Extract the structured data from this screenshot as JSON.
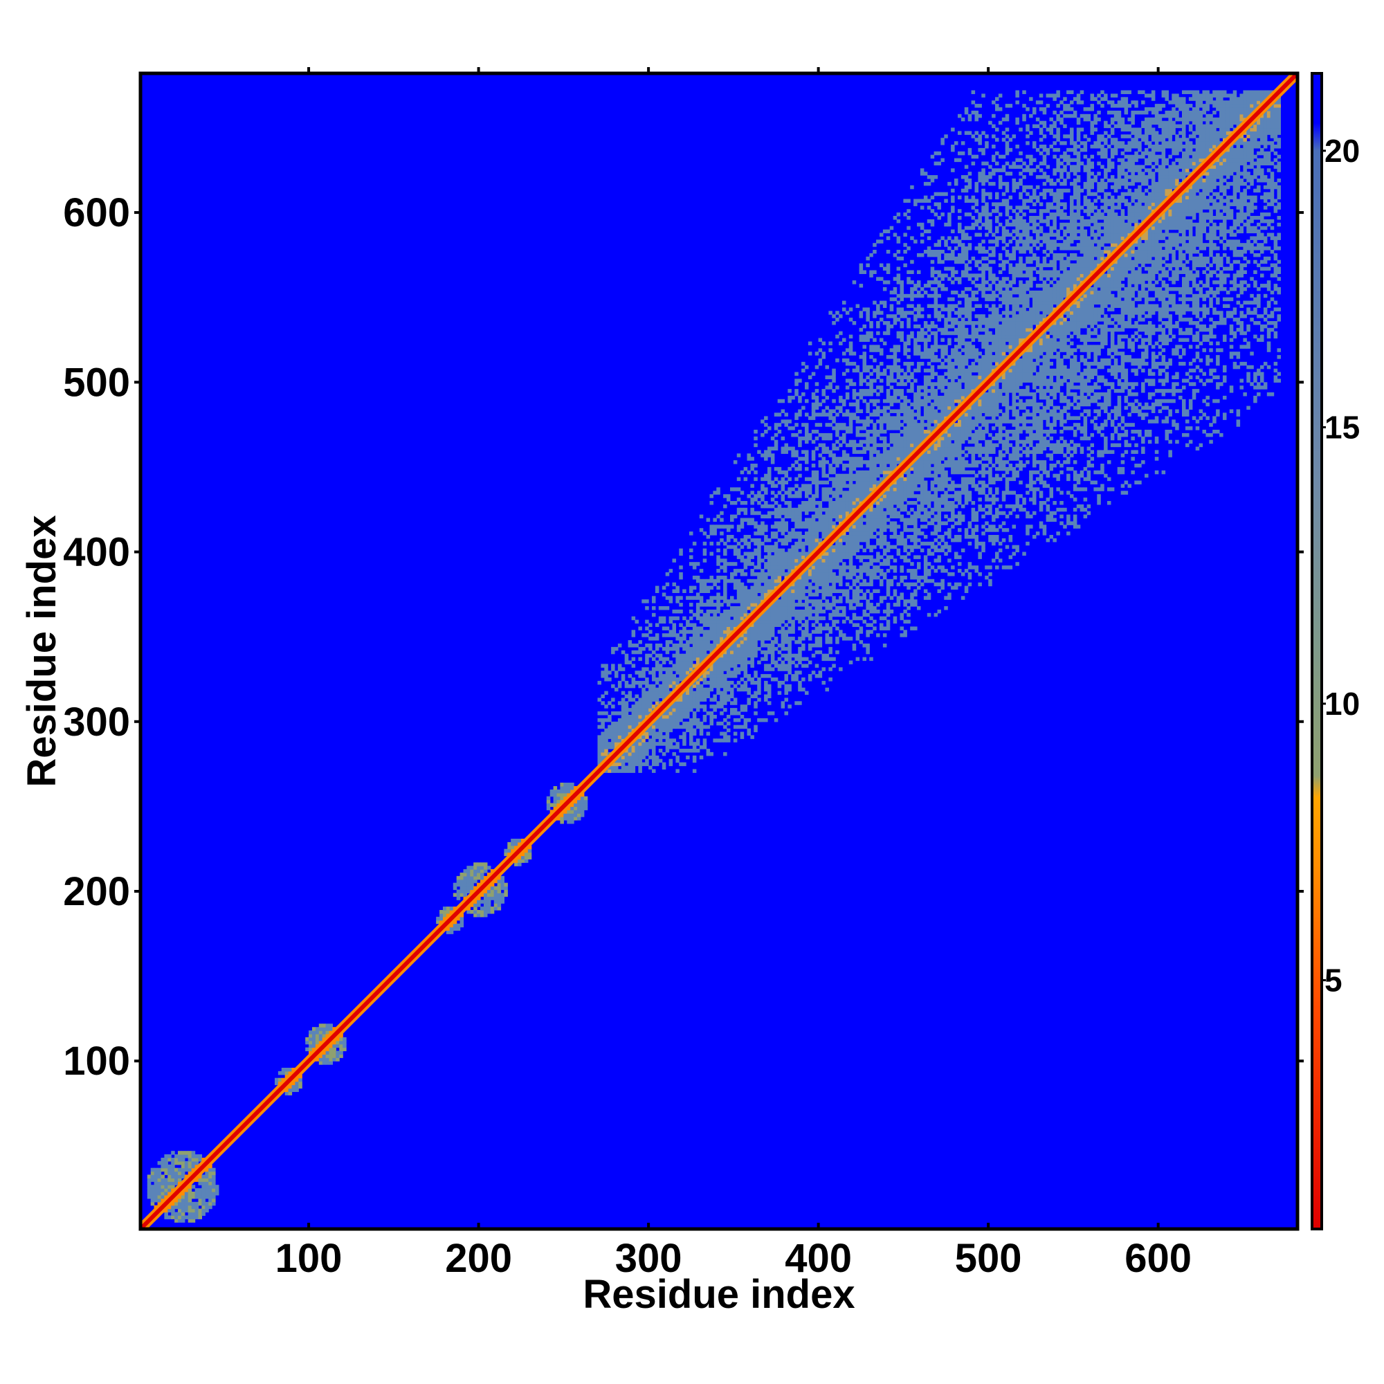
{
  "chart_data": {
    "type": "heatmap",
    "title": "",
    "xlabel": "Residue index",
    "ylabel": "Residue index",
    "xlim": [
      1,
      682
    ],
    "ylim": [
      1,
      682
    ],
    "x_ticks": [
      100,
      200,
      300,
      400,
      500,
      600
    ],
    "y_ticks": [
      100,
      200,
      300,
      400,
      500,
      600
    ],
    "colorbar": {
      "ticks": [
        5,
        10,
        15,
        20
      ],
      "range": [
        0.5,
        21.4
      ],
      "stops": [
        {
          "value": 0.5,
          "color": "#e00000"
        },
        {
          "value": 4.5,
          "color": "#ff4a00"
        },
        {
          "value": 7.0,
          "color": "#ff8c00"
        },
        {
          "value": 8.3,
          "color": "#ffa500"
        },
        {
          "value": 8.7,
          "color": "#8fa070"
        },
        {
          "value": 11.0,
          "color": "#7f9a8a"
        },
        {
          "value": 14.0,
          "color": "#6f8aa8"
        },
        {
          "value": 20.0,
          "color": "#4a6fb8"
        },
        {
          "value": 20.5,
          "color": "#0000ff"
        },
        {
          "value": 21.4,
          "color": "#0000ff"
        }
      ]
    },
    "background_color": "#0000ff",
    "diagonal_color": "#e00000",
    "contact_color": "#5b84b8",
    "regions": [
      {
        "start": 5,
        "end": 45,
        "level": "medium"
      },
      {
        "start": 80,
        "end": 95,
        "level": "low"
      },
      {
        "start": 98,
        "end": 120,
        "level": "low"
      },
      {
        "start": 175,
        "end": 190,
        "level": "low"
      },
      {
        "start": 185,
        "end": 215,
        "level": "medium"
      },
      {
        "start": 215,
        "end": 230,
        "level": "low"
      },
      {
        "start": 240,
        "end": 262,
        "level": "low"
      },
      {
        "start": 270,
        "end": 670,
        "level": "high"
      }
    ]
  }
}
